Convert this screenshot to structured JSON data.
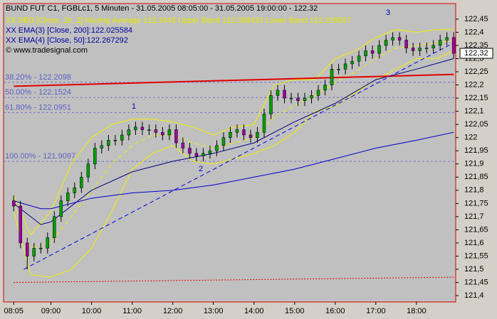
{
  "chart_data": {
    "type": "candlestick",
    "title": "BUND FUT C1, FGBLc1, 5 Minuten - 31.05.2005 08:05:00 - 31.05.2005 19:00:00 - 122.32",
    "legend_lines": [
      {
        "text": "XX BBD [Close, 20, 2] Moving Average 122.3445 Upper Band 122.389433 Lower Band 122.299567",
        "color": "#e8e800"
      },
      {
        "text": "XX EMA(3) [Close, 200]:122.025584",
        "color": "#0000a0"
      },
      {
        "text": "XX EMA(4) [Close, 50]:122.267292",
        "color": "#0000a0"
      }
    ],
    "copyright": "© www.tradesignal.com",
    "x": [
      "08:05",
      "08:15",
      "08:25",
      "08:35",
      "08:45",
      "08:55",
      "09:05",
      "09:15",
      "09:25",
      "09:35",
      "09:45",
      "09:55",
      "10:05",
      "10:15",
      "10:25",
      "10:35",
      "10:45",
      "10:55",
      "11:05",
      "11:15",
      "11:25",
      "11:35",
      "11:45",
      "11:55",
      "12:05",
      "12:15",
      "12:25",
      "12:35",
      "12:45",
      "12:55",
      "13:05",
      "13:15",
      "13:25",
      "13:35",
      "13:45",
      "13:55",
      "14:05",
      "14:15",
      "14:25",
      "14:35",
      "14:45",
      "14:55",
      "15:05",
      "15:15",
      "15:25",
      "15:35",
      "15:45",
      "15:55",
      "16:05",
      "16:15",
      "16:25",
      "16:35",
      "16:45",
      "16:55",
      "17:05",
      "17:15",
      "17:25",
      "17:35",
      "17:45",
      "17:55",
      "18:05",
      "18:15",
      "18:25",
      "18:35",
      "18:45",
      "18:55"
    ],
    "open": [
      121.76,
      121.74,
      121.6,
      121.55,
      121.58,
      121.58,
      121.62,
      121.7,
      121.76,
      121.79,
      121.81,
      121.85,
      121.9,
      121.96,
      121.97,
      121.99,
      121.99,
      122.01,
      122.03,
      122.04,
      122.03,
      122.03,
      122.02,
      122.01,
      122.03,
      121.98,
      121.96,
      121.94,
      121.93,
      121.94,
      121.95,
      121.97,
      122.0,
      122.02,
      122.03,
      122.01,
      122.0,
      122.02,
      122.09,
      122.16,
      122.18,
      122.15,
      122.15,
      122.14,
      122.15,
      122.16,
      122.18,
      122.2,
      122.26,
      122.26,
      122.28,
      122.29,
      122.31,
      122.33,
      122.32,
      122.35,
      122.37,
      122.38,
      122.37,
      122.34,
      122.33,
      122.34,
      122.34,
      122.35,
      122.37,
      122.38
    ],
    "high": [
      121.78,
      121.76,
      121.62,
      121.6,
      121.6,
      121.64,
      121.72,
      121.78,
      121.81,
      121.83,
      121.87,
      121.92,
      121.98,
      121.99,
      122.01,
      122.01,
      122.03,
      122.05,
      122.06,
      122.06,
      122.05,
      122.05,
      122.04,
      122.05,
      122.05,
      122.0,
      121.98,
      121.96,
      121.96,
      121.97,
      121.99,
      122.02,
      122.04,
      122.05,
      122.05,
      122.03,
      122.04,
      122.11,
      122.18,
      122.2,
      122.2,
      122.17,
      122.17,
      122.17,
      122.18,
      122.2,
      122.22,
      122.28,
      122.28,
      122.3,
      122.31,
      122.33,
      122.35,
      122.35,
      122.37,
      122.39,
      122.4,
      122.4,
      122.39,
      122.36,
      122.36,
      122.36,
      122.37,
      122.39,
      122.4,
      122.4
    ],
    "low": [
      121.72,
      121.58,
      121.5,
      121.53,
      121.56,
      121.56,
      121.6,
      121.68,
      121.74,
      121.77,
      121.79,
      121.83,
      121.88,
      121.94,
      121.95,
      121.97,
      121.97,
      121.99,
      122.01,
      122.01,
      122.01,
      122.0,
      121.99,
      121.99,
      121.96,
      121.94,
      121.92,
      121.91,
      121.91,
      121.92,
      121.93,
      121.95,
      121.98,
      122.0,
      121.99,
      121.98,
      121.98,
      122.0,
      122.07,
      122.14,
      122.13,
      122.13,
      122.12,
      122.12,
      122.13,
      122.14,
      122.16,
      122.18,
      122.24,
      122.24,
      122.26,
      122.27,
      122.29,
      122.3,
      122.3,
      122.33,
      122.35,
      122.35,
      122.32,
      122.31,
      122.31,
      122.32,
      122.32,
      122.33,
      122.35,
      122.3
    ],
    "close": [
      121.74,
      121.6,
      121.55,
      121.58,
      121.58,
      121.62,
      121.7,
      121.76,
      121.79,
      121.81,
      121.85,
      121.9,
      121.96,
      121.97,
      121.99,
      121.99,
      122.01,
      122.03,
      122.04,
      122.03,
      122.03,
      122.02,
      122.01,
      122.03,
      121.98,
      121.96,
      121.94,
      121.93,
      121.94,
      121.95,
      121.97,
      122.0,
      122.02,
      122.03,
      122.01,
      122.0,
      122.02,
      122.09,
      122.16,
      122.18,
      122.15,
      122.15,
      122.14,
      122.15,
      122.16,
      122.18,
      122.2,
      122.26,
      122.26,
      122.28,
      122.29,
      122.31,
      122.33,
      122.32,
      122.35,
      122.37,
      122.38,
      122.37,
      122.34,
      122.33,
      122.34,
      122.34,
      122.35,
      122.37,
      122.38,
      122.32
    ],
    "up_color": "#00a000",
    "down_color": "#a000a0",
    "overlays": [
      {
        "color": "#f0f000",
        "style": "solid",
        "x": [
          "08:05",
          "08:30",
          "09:00",
          "09:30",
          "10:00",
          "10:30",
          "11:00",
          "11:30",
          "12:00",
          "12:30",
          "13:00",
          "13:30",
          "14:00",
          "14:30",
          "15:00",
          "15:30",
          "16:00",
          "16:30",
          "17:00",
          "17:30",
          "18:00",
          "18:30",
          "18:55"
        ],
        "values": [
          121.78,
          121.63,
          121.72,
          121.9,
          122.0,
          122.05,
          122.07,
          122.07,
          122.06,
          122.04,
          122.01,
          122.04,
          122.05,
          122.2,
          122.22,
          122.22,
          122.3,
          122.33,
          122.38,
          122.41,
          122.4,
          122.41,
          122.41
        ]
      },
      {
        "color": "#f0f000",
        "style": "solid",
        "x": [
          "08:05",
          "08:30",
          "09:00",
          "09:30",
          "10:00",
          "10:30",
          "11:00",
          "11:30",
          "12:00",
          "12:30",
          "13:00",
          "13:30",
          "14:00",
          "14:30",
          "15:00",
          "15:30",
          "16:00",
          "16:30",
          "17:00",
          "17:30",
          "18:00",
          "18:30",
          "18:55"
        ],
        "values": [
          121.72,
          121.48,
          121.47,
          121.5,
          121.58,
          121.72,
          121.88,
          121.94,
          121.97,
          121.91,
          121.9,
          121.92,
          121.94,
          121.97,
          122.02,
          122.1,
          122.12,
          122.17,
          122.22,
          122.26,
          122.3,
          122.3,
          122.33
        ]
      },
      {
        "color": "#f0f000",
        "style": "dashed",
        "x": [
          "08:05",
          "08:30",
          "09:00",
          "09:30",
          "10:00",
          "10:30",
          "11:00",
          "11:30",
          "12:00",
          "12:30",
          "13:00",
          "13:30",
          "14:00",
          "14:30",
          "15:00",
          "15:30",
          "16:00",
          "16:30",
          "17:00",
          "17:30",
          "18:00",
          "18:30",
          "18:55"
        ],
        "values": [
          121.75,
          121.58,
          121.6,
          121.7,
          121.8,
          121.9,
          121.97,
          122.01,
          122.01,
          121.98,
          121.96,
          121.98,
          122.0,
          122.08,
          122.12,
          122.16,
          122.21,
          122.25,
          122.3,
          122.34,
          122.35,
          122.36,
          122.37
        ]
      },
      {
        "color": "#0000c8",
        "style": "solid",
        "x": [
          "08:05",
          "08:45",
          "09:00",
          "10:00",
          "11:00",
          "12:00",
          "13:00",
          "14:00",
          "15:00",
          "16:00",
          "17:00",
          "18:00",
          "18:55"
        ],
        "values": [
          121.76,
          121.73,
          121.73,
          121.77,
          121.79,
          121.8,
          121.82,
          121.85,
          121.88,
          121.92,
          121.96,
          121.99,
          122.02
        ]
      },
      {
        "color": "#000080",
        "style": "solid",
        "x": [
          "08:05",
          "08:45",
          "09:00",
          "10:00",
          "11:00",
          "12:00",
          "13:00",
          "14:00",
          "15:00",
          "16:00",
          "17:00",
          "18:00",
          "18:55"
        ],
        "values": [
          121.75,
          121.67,
          121.68,
          121.8,
          121.87,
          121.91,
          121.94,
          121.98,
          122.06,
          122.13,
          122.22,
          122.26,
          122.3
        ]
      },
      {
        "color": "#e00000",
        "style": "thick",
        "x": [
          "08:05",
          "18:55"
        ],
        "values": [
          122.195,
          122.24
        ]
      },
      {
        "color": "#0000e0",
        "style": "dashed",
        "x": [
          "08:20",
          "18:55"
        ],
        "values": [
          121.5,
          122.36
        ]
      },
      {
        "color": "#e00000",
        "style": "dotted",
        "x": [
          "08:05",
          "18:55"
        ],
        "values": [
          121.45,
          121.47
        ]
      }
    ],
    "levels": [
      {
        "label": "38.20% - 122.2098",
        "value": 122.2098
      },
      {
        "label": "50.00% - 122.1524",
        "value": 122.1524
      },
      {
        "label": "61.80% - 122.0951",
        "value": 122.0951
      },
      {
        "label": "100.00% - 121.9097",
        "value": 121.9097
      }
    ],
    "annotations": [
      "1",
      "2",
      "3"
    ],
    "last_price": {
      "value": 122.32,
      "label": "122,32"
    },
    "xlim": [
      "07:50",
      "18:58"
    ],
    "xticks": [
      "08:05",
      "09:00",
      "10:00",
      "11:00",
      "12:00",
      "13:00",
      "14:00",
      "15:00",
      "16:00",
      "17:00",
      "18:00"
    ],
    "ylim": [
      121.376,
      122.509
    ],
    "yticks": [
      {
        "value": 121.4,
        "label": "121,4"
      },
      {
        "value": 121.45,
        "label": "121,45"
      },
      {
        "value": 121.5,
        "label": "121,5"
      },
      {
        "value": 121.55,
        "label": "121,55"
      },
      {
        "value": 121.6,
        "label": "121,6"
      },
      {
        "value": 121.65,
        "label": "121,65"
      },
      {
        "value": 121.7,
        "label": "121,7"
      },
      {
        "value": 121.75,
        "label": "121,75"
      },
      {
        "value": 121.8,
        "label": "121,8"
      },
      {
        "value": 121.85,
        "label": "121,85"
      },
      {
        "value": 121.9,
        "label": "121,9"
      },
      {
        "value": 121.95,
        "label": "121,95"
      },
      {
        "value": 122.0,
        "label": "122"
      },
      {
        "value": 122.05,
        "label": "122,05"
      },
      {
        "value": 122.1,
        "label": "122,1"
      },
      {
        "value": 122.15,
        "label": "122,15"
      },
      {
        "value": 122.2,
        "label": "122,2"
      },
      {
        "value": 122.25,
        "label": "122,25"
      },
      {
        "value": 122.3,
        "label": "122,3"
      },
      {
        "value": 122.35,
        "label": "122,35"
      },
      {
        "value": 122.4,
        "label": "122,4"
      },
      {
        "value": 122.45,
        "label": "122,45"
      }
    ]
  }
}
